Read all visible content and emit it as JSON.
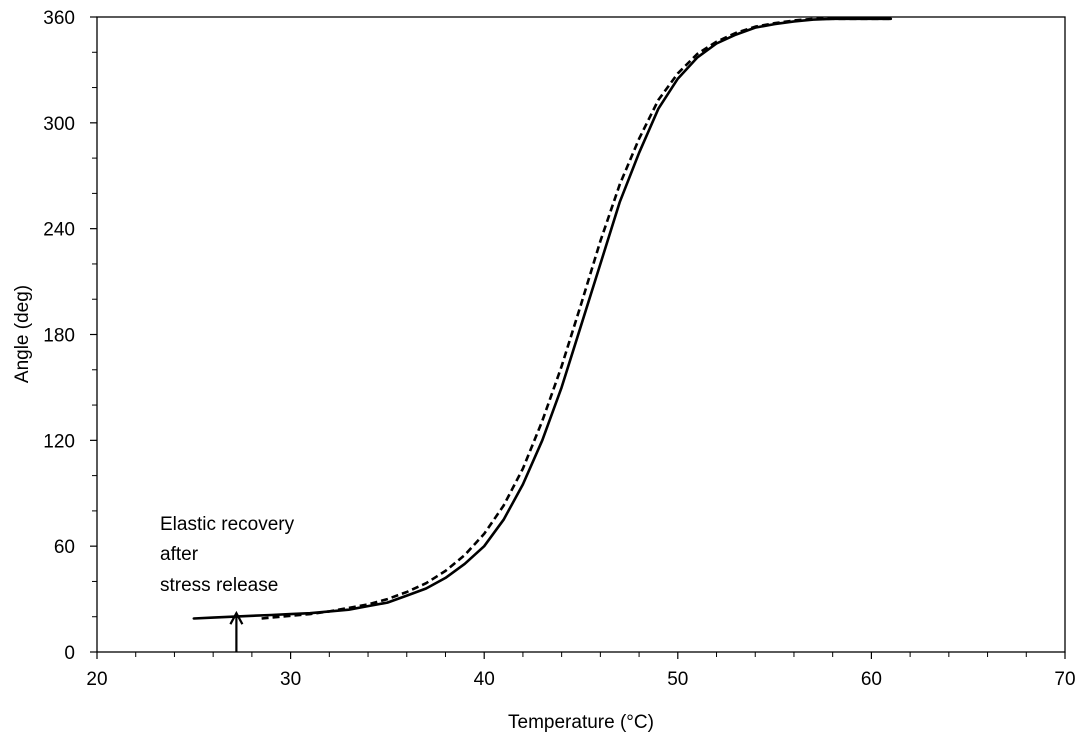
{
  "chart_data": {
    "type": "line",
    "title": "",
    "xlabel": "Temperature (°C)",
    "ylabel": "Angle (deg)",
    "xlim": [
      20,
      70
    ],
    "ylim": [
      0,
      360
    ],
    "x_ticks": [
      20,
      30,
      40,
      50,
      60,
      70
    ],
    "y_ticks": [
      0,
      60,
      120,
      180,
      240,
      300,
      360
    ],
    "grid": false,
    "legend": "none",
    "series": [
      {
        "style": "solid",
        "color": "#000000",
        "points": [
          [
            25,
            19
          ],
          [
            26,
            19.5
          ],
          [
            27,
            20
          ],
          [
            28,
            20.5
          ],
          [
            29,
            21
          ],
          [
            30,
            21.5
          ],
          [
            31,
            22
          ],
          [
            32,
            23
          ],
          [
            33,
            24
          ],
          [
            34,
            26
          ],
          [
            35,
            28
          ],
          [
            36,
            32
          ],
          [
            37,
            36
          ],
          [
            38,
            42
          ],
          [
            39,
            50
          ],
          [
            40,
            60
          ],
          [
            41,
            75
          ],
          [
            42,
            95
          ],
          [
            43,
            120
          ],
          [
            44,
            150
          ],
          [
            45,
            185
          ],
          [
            46,
            220
          ],
          [
            47,
            255
          ],
          [
            48,
            283
          ],
          [
            49,
            308
          ],
          [
            50,
            325
          ],
          [
            51,
            337
          ],
          [
            52,
            345
          ],
          [
            53,
            350
          ],
          [
            54,
            354
          ],
          [
            55,
            356
          ],
          [
            56,
            357.5
          ],
          [
            57,
            358.5
          ],
          [
            58,
            359
          ],
          [
            59,
            359
          ],
          [
            60,
            359
          ],
          [
            61,
            359
          ]
        ]
      },
      {
        "style": "dashed",
        "color": "#000000",
        "points": [
          [
            28.5,
            19
          ],
          [
            29,
            19.5
          ],
          [
            30,
            20.5
          ],
          [
            31,
            21.5
          ],
          [
            32,
            23
          ],
          [
            33,
            25
          ],
          [
            34,
            27
          ],
          [
            35,
            30
          ],
          [
            36,
            34
          ],
          [
            37,
            39
          ],
          [
            38,
            46
          ],
          [
            39,
            55
          ],
          [
            40,
            67
          ],
          [
            41,
            83
          ],
          [
            42,
            104
          ],
          [
            43,
            131
          ],
          [
            44,
            162
          ],
          [
            45,
            197
          ],
          [
            46,
            233
          ],
          [
            47,
            265
          ],
          [
            48,
            291
          ],
          [
            49,
            313
          ],
          [
            50,
            328
          ],
          [
            51,
            339
          ],
          [
            52,
            346
          ],
          [
            53,
            351
          ],
          [
            54,
            354.5
          ],
          [
            55,
            356.5
          ],
          [
            56,
            358
          ],
          [
            57,
            359
          ],
          [
            58,
            359
          ],
          [
            59,
            359
          ],
          [
            60,
            359
          ],
          [
            61,
            359
          ]
        ]
      }
    ],
    "annotation": {
      "lines": [
        "Elastic recovery",
        "after",
        "stress release"
      ],
      "arrow_x": 27.2,
      "arrow_from_y": 0,
      "arrow_to_y": 22
    }
  }
}
